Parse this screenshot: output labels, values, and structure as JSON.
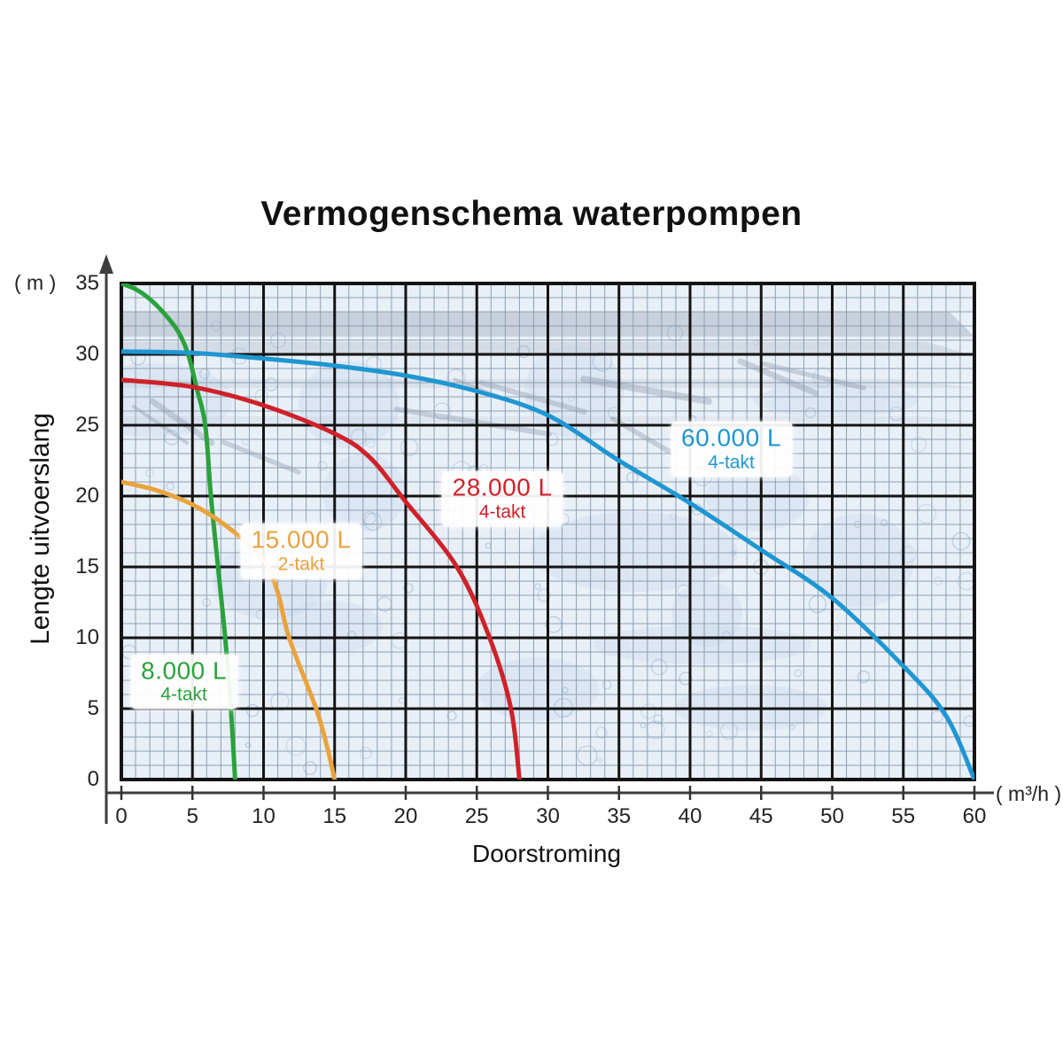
{
  "chart_data": {
    "type": "line",
    "title": "Vermogenschema waterpompen",
    "x_axis": {
      "label": "Doorstroming",
      "unit": "( m³/h )",
      "min": 0,
      "max": 60,
      "ticks": [
        0,
        5,
        10,
        15,
        20,
        25,
        30,
        35,
        40,
        45,
        50,
        55,
        60
      ]
    },
    "y_axis": {
      "label": "Lengte uitvoerslang",
      "unit": "( m )",
      "min": 0,
      "max": 35,
      "ticks": [
        35,
        30,
        25,
        20,
        15,
        10,
        5,
        0
      ]
    },
    "grid": {
      "major_step": 5,
      "minor_step": 1,
      "on": true,
      "major_color": "#141414",
      "minor_color": "#8aa0b5",
      "plot_background": "#e9eff6"
    },
    "legend_position": "labels-on-curves",
    "series": [
      {
        "key": "8000l",
        "name": "8.000 L",
        "subtitle": "4-takt",
        "color": "#2aa23c",
        "label_pos": [
          4.4,
          6.9
        ],
        "points": [
          [
            0,
            35
          ],
          [
            1,
            34.6
          ],
          [
            2,
            33.9
          ],
          [
            3,
            32.9
          ],
          [
            4,
            31.6
          ],
          [
            4.7,
            30
          ],
          [
            5.3,
            27.6
          ],
          [
            5.9,
            25
          ],
          [
            6.3,
            20
          ],
          [
            6.8,
            15
          ],
          [
            7.3,
            10
          ],
          [
            7.7,
            5
          ],
          [
            8,
            0
          ]
        ]
      },
      {
        "key": "15000l",
        "name": "15.000 L",
        "subtitle": "2-takt",
        "color": "#e9a33e",
        "label_pos": [
          12.65,
          16.1
        ],
        "points": [
          [
            0,
            21
          ],
          [
            2.5,
            20.4
          ],
          [
            5,
            19.4
          ],
          [
            7.5,
            17.8
          ],
          [
            10,
            15.5
          ],
          [
            11,
            13.2
          ],
          [
            11.8,
            10
          ],
          [
            13.7,
            5
          ],
          [
            14.5,
            2.2
          ],
          [
            15,
            0
          ]
        ]
      },
      {
        "key": "28000l",
        "name": "28.000 L",
        "subtitle": "4-takt",
        "color": "#cf2129",
        "label_pos": [
          26.8,
          19.8
        ],
        "points": [
          [
            0,
            28.2
          ],
          [
            5,
            27.7
          ],
          [
            10,
            26.4
          ],
          [
            15,
            24.4
          ],
          [
            17.5,
            22.7
          ],
          [
            20,
            19.6
          ],
          [
            23.6,
            15
          ],
          [
            25.9,
            10
          ],
          [
            27.4,
            5
          ],
          [
            28,
            0
          ]
        ]
      },
      {
        "key": "60000l",
        "name": "60.000 L",
        "subtitle": "4-takt",
        "color": "#1e96d2",
        "label_pos": [
          42.9,
          23.3
        ],
        "points": [
          [
            0,
            30.2
          ],
          [
            5,
            30.1
          ],
          [
            10,
            29.7
          ],
          [
            15,
            29.2
          ],
          [
            20,
            28.5
          ],
          [
            25,
            27.4
          ],
          [
            30,
            25.7
          ],
          [
            35,
            22.5
          ],
          [
            40,
            19.5
          ],
          [
            45,
            16.2
          ],
          [
            50,
            12.8
          ],
          [
            55,
            8
          ],
          [
            58,
            4.5
          ],
          [
            60,
            0
          ]
        ]
      }
    ]
  },
  "style": {
    "axis_color": "#3d3d3d",
    "title_color": "#111111",
    "curve_width": 5
  }
}
